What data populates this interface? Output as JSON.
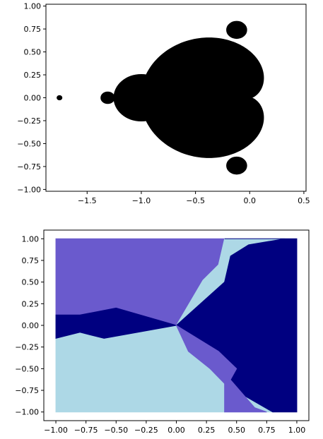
{
  "chart_data": [
    {
      "type": "scatter",
      "title": "",
      "xlabel": "",
      "ylabel": "",
      "xlim": [
        -1.88,
        0.52
      ],
      "ylim": [
        -1.02,
        1.02
      ],
      "grid": false,
      "xticks": [
        -1.5,
        -1.0,
        -0.5,
        0.0,
        0.5
      ],
      "xtick_labels": [
        "−1.5",
        "−1.0",
        "−0.5",
        "0.0",
        "0.5"
      ],
      "yticks": [
        1.0,
        0.75,
        0.5,
        0.25,
        0.0,
        -0.25,
        -0.5,
        -0.75,
        -1.0
      ],
      "ytick_labels": [
        "1.00",
        "0.75",
        "0.50",
        "0.25",
        "0.00",
        "−0.25",
        "−0.50",
        "−0.75",
        "−1.00"
      ],
      "point_color": "#000000",
      "regions": [
        {
          "shape": "cardioid",
          "center": [
            -0.25,
            0.0
          ],
          "radius": 0.5
        },
        {
          "shape": "disk",
          "center": [
            -1.0,
            0.0
          ],
          "radius": 0.25
        },
        {
          "shape": "disk",
          "center": [
            -1.31,
            0.0
          ],
          "radius": 0.06
        },
        {
          "shape": "disk",
          "center": [
            -0.12,
            0.74
          ],
          "radius": 0.09
        },
        {
          "shape": "disk",
          "center": [
            -0.12,
            -0.74
          ],
          "radius": 0.09
        },
        {
          "shape": "disk",
          "center": [
            -1.755,
            0.0
          ],
          "radius": 0.02
        }
      ]
    },
    {
      "type": "scatter",
      "title": "",
      "xlabel": "",
      "ylabel": "",
      "xlim": [
        -1.1,
        1.1
      ],
      "ylim": [
        -1.1,
        1.1
      ],
      "grid": false,
      "xticks": [
        -1.0,
        -0.75,
        -0.5,
        -0.25,
        0.0,
        0.25,
        0.5,
        0.75,
        1.0
      ],
      "xtick_labels": [
        "−1.00",
        "−0.75",
        "−0.50",
        "−0.25",
        "0.00",
        "0.25",
        "0.50",
        "0.75",
        "1.00"
      ],
      "yticks": [
        1.0,
        0.75,
        0.5,
        0.25,
        0.0,
        -0.25,
        -0.5,
        -0.75,
        -1.0
      ],
      "ytick_labels": [
        "1.00",
        "0.75",
        "0.50",
        "0.25",
        "0.00",
        "−0.25",
        "−0.50",
        "−0.75",
        "−1.00"
      ],
      "colors": [
        "#6a5acd",
        "#add8e6",
        "#000080"
      ],
      "region_polygons": [
        {
          "color_index": 0,
          "points": [
            [
              -1.0,
              1.0
            ],
            [
              0.4,
              1.0
            ],
            [
              0.35,
              0.7
            ],
            [
              0.22,
              0.52
            ],
            [
              0.0,
              0.0
            ],
            [
              -0.5,
              0.2
            ],
            [
              -0.8,
              0.12
            ],
            [
              -1.0,
              0.12
            ]
          ]
        },
        {
          "color_index": 1,
          "points": [
            [
              -1.0,
              -0.15
            ],
            [
              -1.0,
              -1.0
            ],
            [
              0.4,
              -1.0
            ],
            [
              0.4,
              -0.55
            ],
            [
              0.0,
              0.0
            ],
            [
              -0.6,
              -0.15
            ],
            [
              -0.8,
              -0.08
            ]
          ]
        },
        {
          "color_index": 1,
          "points": [
            [
              0.0,
              0.0
            ],
            [
              0.4,
              0.5
            ],
            [
              0.45,
              0.8
            ],
            [
              0.6,
              0.93
            ],
            [
              0.9,
              1.0
            ],
            [
              0.4,
              1.0
            ],
            [
              0.35,
              0.7
            ],
            [
              0.22,
              0.52
            ]
          ]
        },
        {
          "color_index": 1,
          "points": [
            [
              0.4,
              -0.55
            ],
            [
              0.55,
              -0.8
            ],
            [
              0.8,
              -1.0
            ],
            [
              0.4,
              -1.0
            ]
          ]
        },
        {
          "color_index": 2,
          "points": [
            [
              0.4,
              1.0
            ],
            [
              1.0,
              1.0
            ],
            [
              1.0,
              -1.0
            ],
            [
              0.8,
              -1.0
            ],
            [
              0.55,
              -0.8
            ],
            [
              0.4,
              -0.55
            ],
            [
              0.0,
              0.0
            ],
            [
              0.4,
              0.5
            ],
            [
              0.45,
              0.8
            ],
            [
              0.6,
              0.93
            ],
            [
              0.9,
              1.0
            ]
          ]
        },
        {
          "color_index": 2,
          "points": [
            [
              -1.0,
              0.12
            ],
            [
              -0.8,
              0.12
            ],
            [
              -0.5,
              0.2
            ],
            [
              0.0,
              0.0
            ],
            [
              -0.6,
              -0.15
            ],
            [
              -0.8,
              -0.08
            ],
            [
              -1.0,
              -0.15
            ]
          ]
        },
        {
          "color_index": 0,
          "points": [
            [
              0.0,
              0.0
            ],
            [
              0.35,
              -0.3
            ],
            [
              0.5,
              -0.5
            ],
            [
              0.42,
              -0.7
            ],
            [
              0.28,
              -0.5
            ],
            [
              0.1,
              -0.3
            ]
          ]
        },
        {
          "color_index": 0,
          "points": [
            [
              0.4,
              -0.55
            ],
            [
              0.65,
              -0.95
            ],
            [
              0.75,
              -1.0
            ],
            [
              0.4,
              -1.0
            ]
          ]
        }
      ]
    }
  ]
}
